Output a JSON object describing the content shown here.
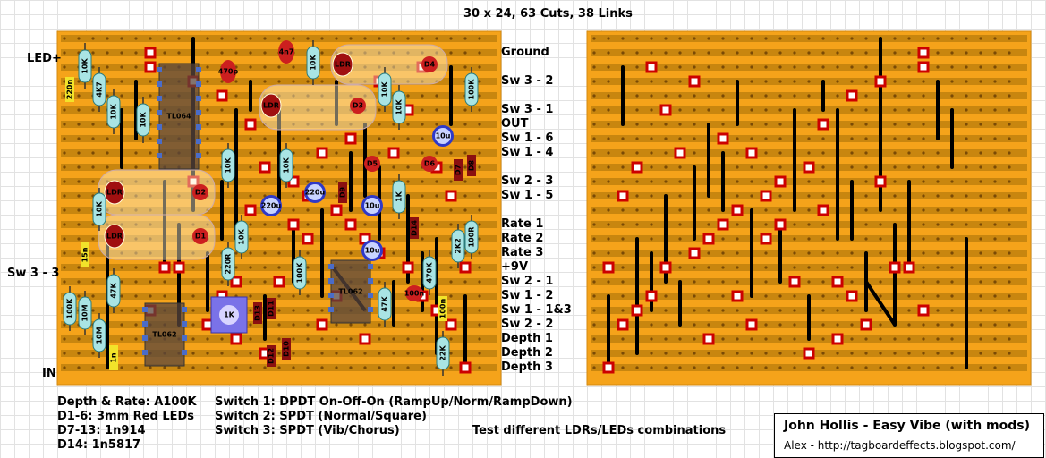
{
  "title": "30 x 24, 63 Cuts, 38 Links",
  "left_labels": [
    "LED+",
    "Sw 3 - 3",
    "IN"
  ],
  "right_labels": [
    "Ground",
    "Sw 3 - 2",
    "Sw 3 - 1",
    "OUT",
    "Sw 1 - 6",
    "Sw 1 - 4",
    "Sw 2 - 3",
    "Sw 1 - 5",
    "Rate 1",
    "Rate 2",
    "Rate 3",
    "+9V",
    "Sw 2 - 1",
    "Sw 1 - 2",
    "Sw 1 - 1&3",
    "Sw 2 - 2",
    "Depth 1",
    "Depth 2",
    "Depth 3"
  ],
  "notes_left": [
    "Depth & Rate: A100K",
    "D1-6: 3mm Red LEDs",
    "D7-13: 1n914",
    "D14: 1n5817"
  ],
  "notes_switch": [
    "Switch 1: DPDT On-Off-On (RampUp/Norm/RampDown)",
    "Switch 2: SPDT (Normal/Square)",
    "Switch 3: SPDT (Vib/Chorus)"
  ],
  "note_test": "Test different LDRs/LEDs combinations",
  "credit": {
    "author": "John Hollis - Easy Vibe (with mods)",
    "url": "Alex - http://tagboardeffects.blogspot.com/"
  },
  "components": {
    "resistors": [
      "10K",
      "10K",
      "4K7",
      "10K",
      "10K",
      "10K",
      "10K",
      "10K",
      "10K",
      "10K",
      "10K",
      "10K",
      "100K",
      "220R",
      "10K",
      "100K",
      "1K",
      "100K",
      "10M",
      "10M",
      "47K",
      "47K",
      "470K",
      "2K2",
      "100R",
      "22K",
      "1K"
    ],
    "capacitors": [
      "220n",
      "470p",
      "4n7",
      "15n",
      "1n",
      "100n",
      "100n"
    ],
    "electrolytics": [
      "10u",
      "220u",
      "220u",
      "10u",
      "10u"
    ],
    "ics": [
      "TL064",
      "TL062",
      "TL062"
    ],
    "ldrs": [
      "LDR",
      "LDR",
      "LDR",
      "LDR",
      "LDR"
    ],
    "leds": [
      "D4",
      "D3",
      "D2",
      "D1",
      "D5",
      "D6"
    ],
    "diodes": [
      "D7",
      "D8",
      "D9",
      "D10",
      "D11",
      "D12",
      "D13",
      "D14"
    ],
    "trimmer": "1K"
  },
  "colors": {
    "board": "#f5a31a",
    "strip": "#c8860f",
    "cut": "#cc0000",
    "link": "#000000",
    "resistor": "#a9e4e4",
    "led": "#cc1f1f",
    "diode": "#8b1010"
  }
}
